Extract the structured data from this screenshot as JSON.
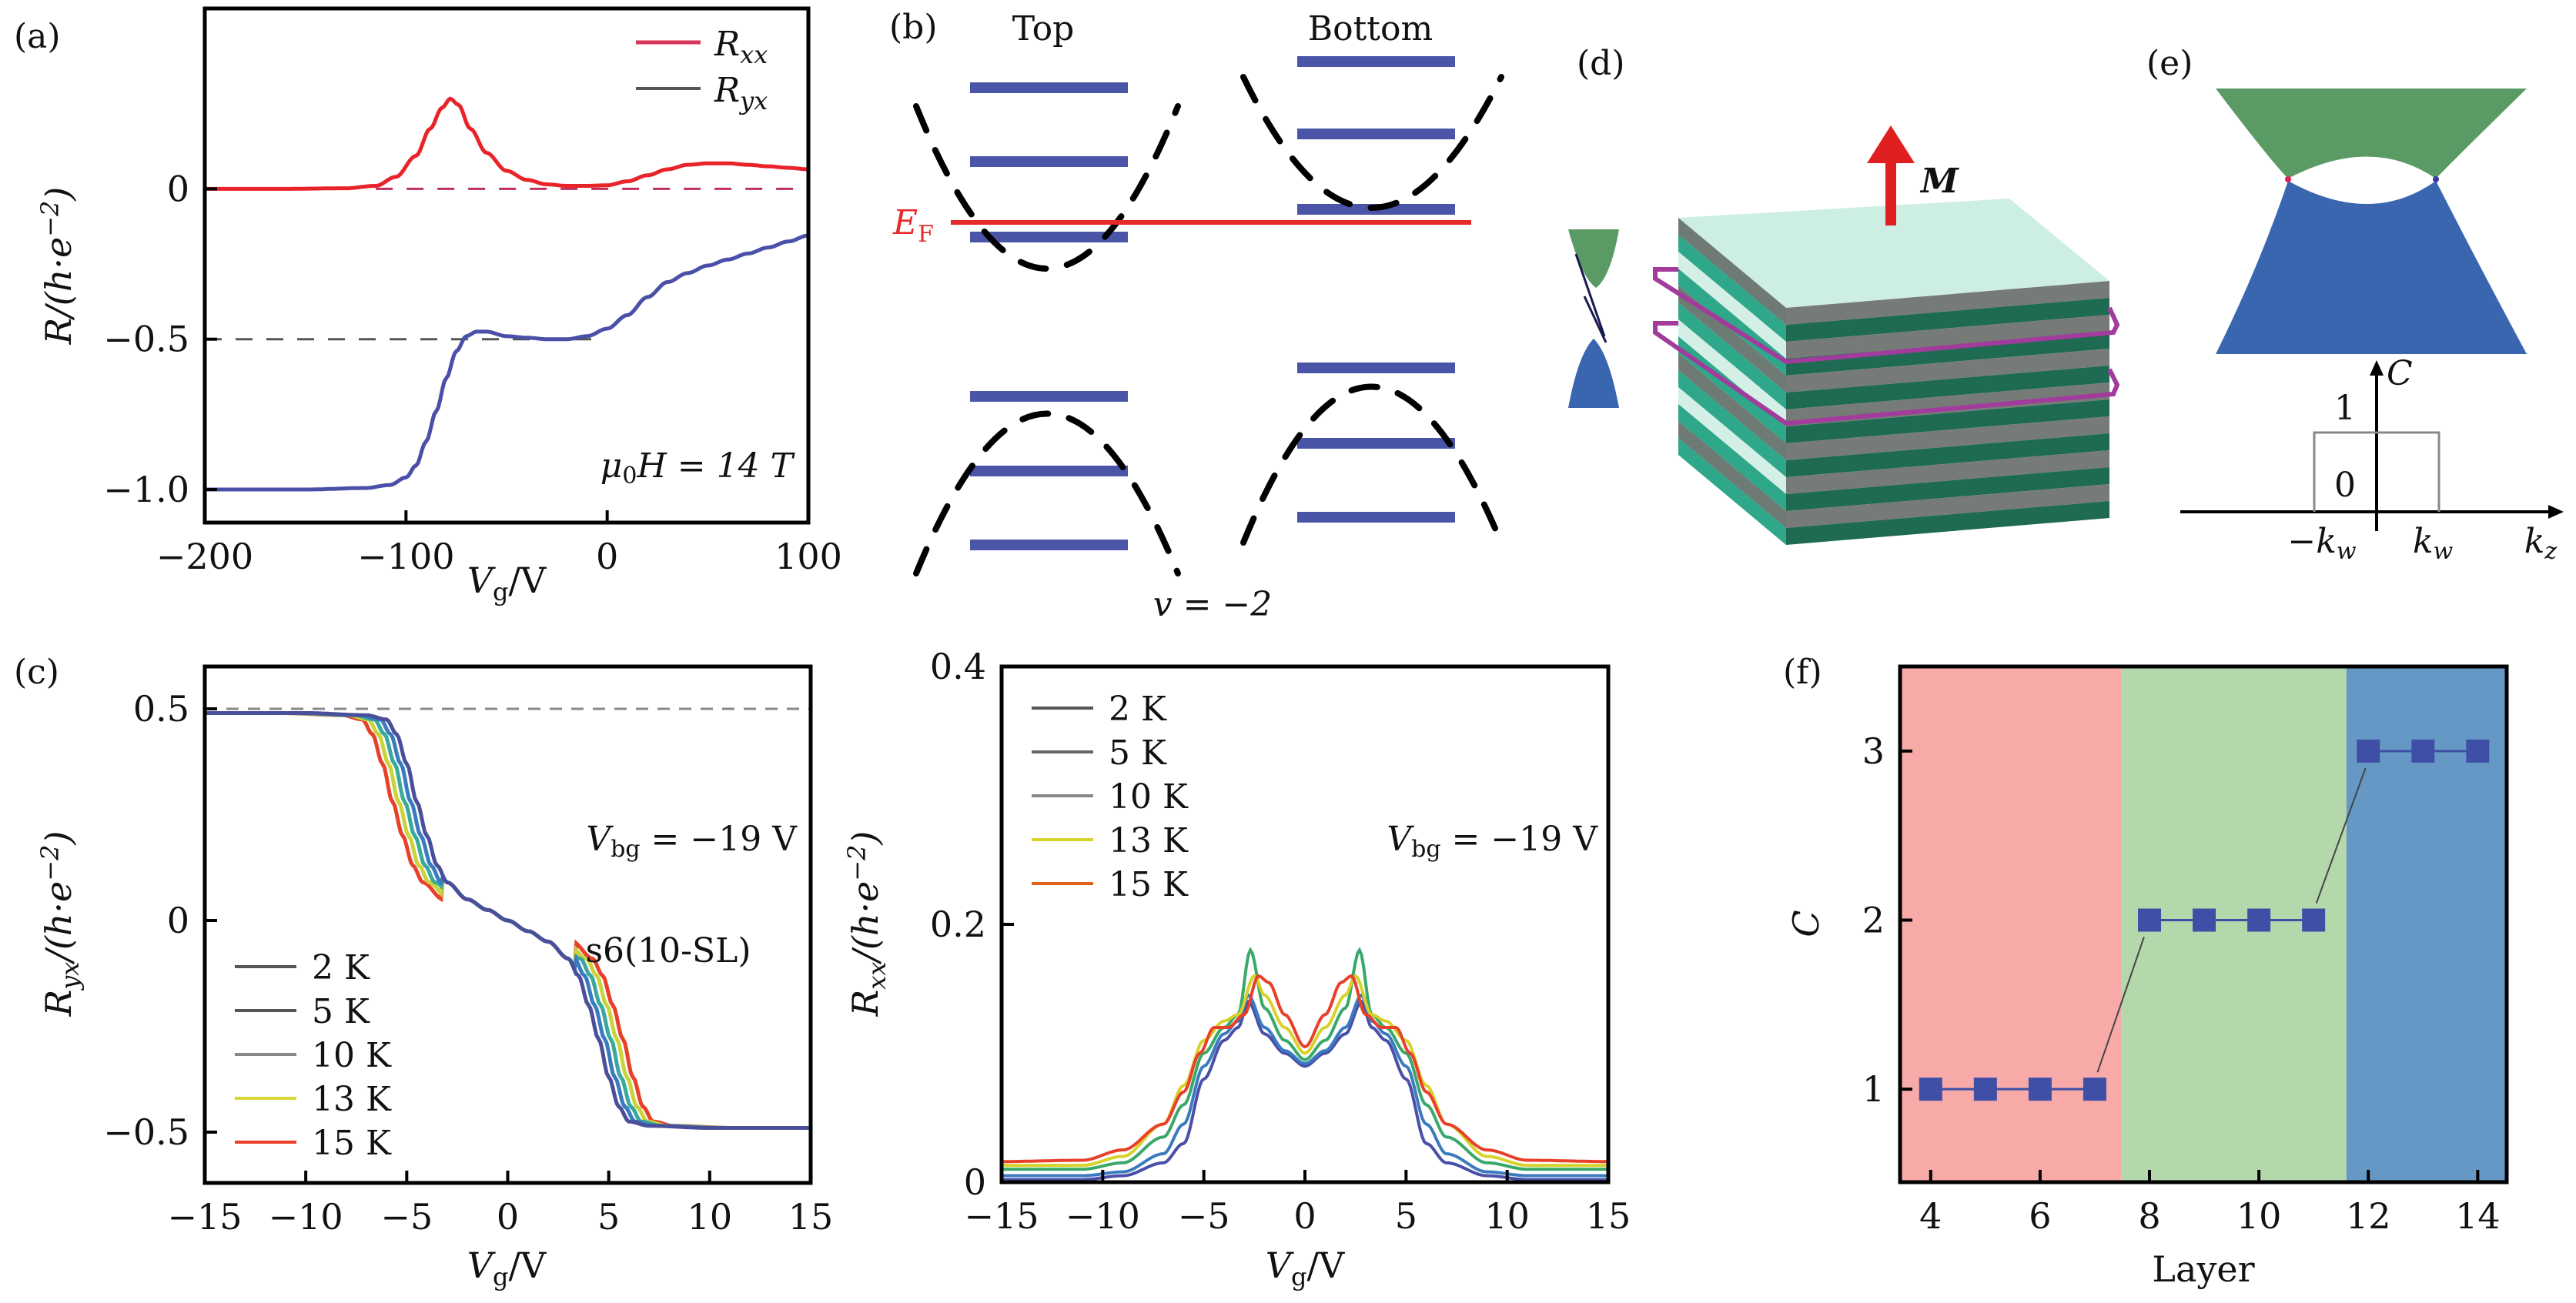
{
  "figure": {
    "panel_labels": [
      "(a)",
      "(b)",
      "(c)",
      "(d)",
      "(e)",
      "(f)"
    ]
  },
  "chart_data": [
    {
      "id": "a",
      "type": "line",
      "title": "",
      "xlabel": "Vg/V",
      "ylabel": "R/(h·e⁻²)",
      "xlim": [
        -200,
        100
      ],
      "ylim": [
        -1.11,
        0.6
      ],
      "xticks": [
        -200,
        -100,
        0,
        100
      ],
      "xtick_labels": [
        "−200",
        "−100",
        "0",
        "100"
      ],
      "yticks": [
        0,
        -0.5,
        -1.0
      ],
      "ytick_labels": [
        "0",
        "−0.5",
        "−1.0"
      ],
      "legend": {
        "placement": "top-right",
        "entries": [
          "Rxx",
          "Ryx"
        ]
      },
      "annotation": "μ0H = 14 T",
      "reference_lines": [
        {
          "y": 0,
          "x_from": -115,
          "x_to": 95,
          "color": "#c0305a",
          "style": "dashed"
        },
        {
          "y": -0.5,
          "x_from": -200,
          "x_to": -5,
          "color": "#555555",
          "style": "dashed"
        }
      ],
      "series": [
        {
          "name": "Rxx",
          "color": "#e8232a",
          "x": [
            -200,
            -160,
            -130,
            -115,
            -105,
            -95,
            -88,
            -82,
            -78,
            -74,
            -68,
            -60,
            -50,
            -40,
            -30,
            -20,
            -10,
            0,
            10,
            20,
            30,
            40,
            50,
            60,
            70,
            80,
            90,
            100
          ],
          "y": [
            0.0,
            0.0,
            0.002,
            0.01,
            0.04,
            0.11,
            0.2,
            0.27,
            0.3,
            0.28,
            0.2,
            0.12,
            0.06,
            0.03,
            0.015,
            0.01,
            0.01,
            0.012,
            0.025,
            0.045,
            0.065,
            0.08,
            0.085,
            0.085,
            0.08,
            0.075,
            0.07,
            0.065
          ]
        },
        {
          "name": "Ryx",
          "color": "#4a4fa8",
          "x": [
            -200,
            -150,
            -120,
            -108,
            -100,
            -95,
            -90,
            -85,
            -80,
            -75,
            -70,
            -65,
            -60,
            -50,
            -40,
            -30,
            -20,
            -10,
            0,
            10,
            20,
            30,
            40,
            50,
            60,
            70,
            80,
            90,
            100
          ],
          "y": [
            -1.0,
            -1.0,
            -0.995,
            -0.985,
            -0.96,
            -0.92,
            -0.84,
            -0.74,
            -0.63,
            -0.54,
            -0.49,
            -0.475,
            -0.475,
            -0.49,
            -0.495,
            -0.5,
            -0.5,
            -0.49,
            -0.465,
            -0.42,
            -0.36,
            -0.31,
            -0.28,
            -0.255,
            -0.235,
            -0.215,
            -0.195,
            -0.175,
            -0.155
          ]
        }
      ]
    },
    {
      "id": "c-left",
      "type": "line",
      "xlabel": "Vg/V",
      "ylabel": "Ryx/(h·e⁻²)",
      "xlim": [
        -15,
        15
      ],
      "ylim": [
        -0.62,
        0.6
      ],
      "xticks": [
        -15,
        -10,
        -5,
        0,
        5,
        10,
        15
      ],
      "xtick_labels": [
        "−15",
        "−10",
        "−5",
        "0",
        "5",
        "10",
        "15"
      ],
      "yticks": [
        0.5,
        0,
        -0.5
      ],
      "ytick_labels": [
        "0.5",
        "0",
        "−0.5"
      ],
      "reference_lines": [
        {
          "y": 0.5,
          "color": "#888888",
          "style": "dashed"
        }
      ],
      "annotations": [
        "Vbg = −19 V",
        "s6(10-SL)"
      ],
      "legend": {
        "placement": "bottom-left",
        "entries": [
          "2 K",
          "5 K",
          "10 K",
          "13 K",
          "15 K"
        ]
      },
      "series": [
        {
          "name": "2 K",
          "color": "#4a4f9a",
          "shift": 0.0
        },
        {
          "name": "5 K",
          "color": "#3a7bbf",
          "shift": 0.3
        },
        {
          "name": "10 K",
          "color": "#3aa89a",
          "shift": 0.6
        },
        {
          "name": "13 K",
          "color": "#c8d43a",
          "shift": 0.9
        },
        {
          "name": "15 K",
          "color": "#e8402a",
          "shift": 1.2
        }
      ],
      "base_curve": {
        "x": [
          -15,
          -10,
          -7,
          -6,
          -5.5,
          -5,
          -4.5,
          -4,
          -3.5,
          -3,
          -2,
          -1,
          0,
          1,
          2,
          3,
          3.5,
          4,
          4.5,
          5,
          5.5,
          6,
          7,
          10,
          15
        ],
        "y": [
          0.49,
          0.49,
          0.485,
          0.475,
          0.44,
          0.37,
          0.28,
          0.2,
          0.13,
          0.09,
          0.05,
          0.025,
          0.0,
          -0.025,
          -0.05,
          -0.09,
          -0.13,
          -0.2,
          -0.28,
          -0.37,
          -0.44,
          -0.475,
          -0.485,
          -0.49,
          -0.49
        ]
      }
    },
    {
      "id": "c-right",
      "type": "line",
      "xlabel": "Vg/V",
      "ylabel": "Rxx/(h·e⁻²)",
      "xlim": [
        -15,
        15
      ],
      "ylim": [
        0,
        0.4
      ],
      "xticks": [
        -15,
        -10,
        -5,
        0,
        5,
        10,
        15
      ],
      "xtick_labels": [
        "−15",
        "−10",
        "−5",
        "0",
        "5",
        "10",
        "15"
      ],
      "yticks": [
        0,
        0.2,
        0.4
      ],
      "ytick_labels": [
        "0",
        "0.2",
        "0.4"
      ],
      "annotations": [
        "Vbg = −19 V"
      ],
      "legend": {
        "placement": "top-left",
        "entries": [
          "2 K",
          "5 K",
          "10 K",
          "13 K",
          "15 K"
        ]
      },
      "series": [
        {
          "name": "2 K",
          "color": "#4a4fa8",
          "x": [
            0,
            1,
            2,
            2.8,
            3.3,
            4,
            5,
            6,
            7,
            9,
            11,
            15
          ],
          "y": [
            0.09,
            0.1,
            0.115,
            0.14,
            0.12,
            0.11,
            0.08,
            0.03,
            0.015,
            0.005,
            0.002,
            0.002
          ]
        },
        {
          "name": "5 K",
          "color": "#3a7bbf",
          "x": [
            0,
            1,
            2,
            2.8,
            3.3,
            4,
            5,
            6,
            7,
            9,
            11,
            15
          ],
          "y": [
            0.092,
            0.102,
            0.12,
            0.145,
            0.125,
            0.115,
            0.09,
            0.045,
            0.022,
            0.008,
            0.005,
            0.005
          ]
        },
        {
          "name": "10 K",
          "color": "#3aa86a",
          "x": [
            0,
            1,
            2,
            2.7,
            3.3,
            4,
            5,
            6,
            7,
            9,
            11,
            15
          ],
          "y": [
            0.095,
            0.11,
            0.135,
            0.18,
            0.13,
            0.12,
            0.1,
            0.06,
            0.035,
            0.015,
            0.01,
            0.01
          ]
        },
        {
          "name": "13 K",
          "color": "#d6d22a",
          "x": [
            0,
            1,
            2,
            2.5,
            3.3,
            4,
            5,
            6,
            7,
            9,
            11,
            15
          ],
          "y": [
            0.1,
            0.12,
            0.145,
            0.16,
            0.13,
            0.125,
            0.11,
            0.075,
            0.045,
            0.02,
            0.013,
            0.013
          ]
        },
        {
          "name": "15 K",
          "color": "#e8402a",
          "x": [
            0,
            1,
            1.8,
            2.3,
            3,
            3.8,
            4.5,
            5.2,
            6,
            7,
            9,
            11,
            15
          ],
          "y": [
            0.105,
            0.13,
            0.155,
            0.16,
            0.13,
            0.12,
            0.12,
            0.1,
            0.07,
            0.045,
            0.025,
            0.017,
            0.016
          ]
        }
      ],
      "symmetric_about_zero": true
    },
    {
      "id": "f",
      "type": "scatter",
      "xlabel": "Layer",
      "ylabel": "C",
      "xlim": [
        3.44,
        14.53
      ],
      "ylim": [
        0.45,
        3.5
      ],
      "xticks": [
        4,
        6,
        8,
        10,
        12,
        14
      ],
      "xtick_labels": [
        "4",
        "6",
        "8",
        "10",
        "12",
        "14"
      ],
      "yticks": [
        1,
        2,
        3
      ],
      "ytick_labels": [
        "1",
        "2",
        "3"
      ],
      "regions": [
        {
          "from": 3.44,
          "to": 7.48,
          "color": "#f7aaa8",
          "C": 1
        },
        {
          "from": 7.48,
          "to": 11.6,
          "color": "#b4d7ac",
          "C": 2
        },
        {
          "from": 11.6,
          "to": 14.53,
          "color": "#6598c4",
          "C": 3
        }
      ],
      "marker_color": "#3f4fa6",
      "x": [
        4,
        5,
        6,
        7,
        8,
        9,
        10,
        11,
        12,
        13,
        14
      ],
      "y": [
        1,
        1,
        1,
        1,
        2,
        2,
        2,
        2,
        3,
        3,
        3
      ]
    }
  ],
  "panel_b": {
    "top_label": "Top",
    "bottom_label": "Bottom",
    "ef_label": "E",
    "ef_sub": "F",
    "filling_label": "v = −2",
    "level_color": "#4a55a8",
    "ef_color": "#e62a2a"
  },
  "panel_d": {
    "magnetization_label": "M",
    "arrow_color": "#e02020",
    "edge_state_color": "#a23c9c",
    "cone_upper_color": "#5a9a64",
    "cone_lower_color": "#3a66b0"
  },
  "panel_e": {
    "c_axis_label": "C",
    "kz_label": "k",
    "kz_sub": "z",
    "kw_neg_label": "−k",
    "kw_pos_label": "k",
    "kw_sub": "w",
    "level_one": "1",
    "level_zero": "0",
    "upper_color": "#5a9a64",
    "lower_color": "#3a66b0"
  },
  "text": {
    "a_xlabel_V": "V",
    "a_xlabel_sub": "g",
    "a_xlabel_unit": "/V",
    "a_ylabel": "R/(h·e",
    "a_ylabel_exp": "−2",
    "a_ylabel_close": ")",
    "a_leg_rxx": "R",
    "a_leg_rxx_sub": "xx",
    "a_leg_ryx": "R",
    "a_leg_ryx_sub": "yx",
    "a_annot_mu": "μ",
    "a_annot_sub": "0",
    "a_annot_rest": "H = 14 T",
    "vbg_V": "V",
    "vbg_sub": "bg",
    "vbg_rest": " = −19 V",
    "sample": "s6(10-SL)",
    "c_ylabel_R": "R",
    "c_ylabel_sub_yx": "yx",
    "c_ylabel_sub_xx": "xx",
    "c_ylabel_rest": "/(h·e",
    "c_ylabel_exp": "−2",
    "c_ylabel_close": ")",
    "f_xlabel": "Layer",
    "f_ylabel": "C"
  }
}
